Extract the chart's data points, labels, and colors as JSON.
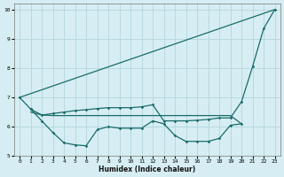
{
  "xlabel": "Humidex (Indice chaleur)",
  "xlim": [
    -0.5,
    23.5
  ],
  "ylim": [
    5,
    10.2
  ],
  "yticks": [
    5,
    6,
    7,
    8,
    9,
    10
  ],
  "xticks": [
    0,
    1,
    2,
    3,
    4,
    5,
    6,
    7,
    8,
    9,
    10,
    11,
    12,
    13,
    14,
    15,
    16,
    17,
    18,
    19,
    20,
    21,
    22,
    23
  ],
  "bg_color": "#d6eef3",
  "grid_color": "#b8d8e0",
  "line_color": "#1a6b6b",
  "line_top": {
    "x": [
      0,
      23
    ],
    "y": [
      7.0,
      10.0
    ]
  },
  "line_mid_upper": {
    "x": [
      1,
      2,
      3,
      4,
      5,
      6,
      7,
      8,
      9,
      10,
      11,
      12,
      13,
      14,
      15,
      16,
      17,
      18,
      19,
      20,
      21,
      22,
      23
    ],
    "y": [
      6.6,
      6.4,
      6.45,
      6.5,
      6.55,
      6.58,
      6.62,
      6.65,
      6.65,
      6.65,
      6.68,
      6.75,
      6.2,
      6.2,
      6.2,
      6.22,
      6.25,
      6.3,
      6.3,
      6.85,
      8.05,
      9.35,
      10.0
    ]
  },
  "line_mid_lower": {
    "x": [
      1,
      2,
      3,
      4,
      5,
      6,
      7,
      8,
      9,
      10,
      11,
      12,
      13,
      14,
      15,
      16,
      17,
      18,
      19,
      20
    ],
    "y": [
      6.5,
      6.4,
      6.38,
      6.38,
      6.38,
      6.38,
      6.38,
      6.38,
      6.38,
      6.38,
      6.38,
      6.38,
      6.38,
      6.38,
      6.38,
      6.38,
      6.38,
      6.38,
      6.38,
      6.1
    ]
  },
  "line_bottom": {
    "x": [
      0,
      1,
      2,
      3,
      4,
      5,
      6,
      7,
      8,
      9,
      10,
      11,
      12,
      13,
      14,
      15,
      16,
      17,
      18,
      19,
      20
    ],
    "y": [
      7.0,
      6.6,
      6.2,
      5.8,
      5.45,
      5.38,
      5.35,
      5.9,
      6.0,
      5.95,
      5.95,
      5.95,
      6.2,
      6.1,
      5.7,
      5.5,
      5.5,
      5.5,
      5.6,
      6.05,
      6.1
    ]
  }
}
